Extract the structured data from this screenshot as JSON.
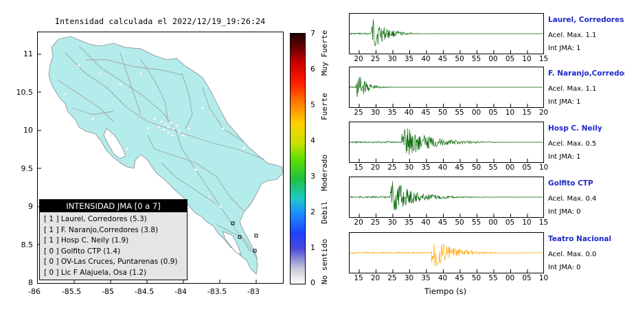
{
  "map": {
    "title": "Intensidad calculada el 2022/12/19_19:26:24",
    "lat_ticks": [
      "11",
      "10.5",
      "10",
      "9.5",
      "9",
      "8.5",
      "8"
    ],
    "lon_ticks": [
      "-86",
      "-85.5",
      "-85",
      "-84.5",
      "-84",
      "-83.5",
      "-83"
    ],
    "land_color": "#b4ecec",
    "colorbar": {
      "ticks": [
        "7",
        "6",
        "5",
        "4",
        "3",
        "2",
        "1",
        "0"
      ],
      "labels": [
        "Muy Fuerte",
        "Fuerte",
        "Moderado",
        "Debil",
        "No sentido"
      ]
    },
    "legend": {
      "header": "INTENSIDAD JMA [0 a 7]",
      "items": [
        "[ 1 ]  Laurel, Corredores (5.3)",
        "[ 1 ]  F. Naranjo,Corredores (3.8)",
        "[ 1 ]  Hosp C. Neily (1.9)",
        "[ 0 ]  Golfito CTP (1.4)",
        "[ 0 ]  OV-Las Cruces, Puntarenas (0.9)",
        "[ 0 ]  Lic F Alajuela, Osa (1.2)"
      ]
    }
  },
  "seismograms": {
    "xlabel": "Tiempo (s)",
    "stations": [
      {
        "name": "Laurel, Corredores",
        "accel": "Acel. Max. 1.1",
        "jma": "Int JMA: 1",
        "color": "#006400",
        "ticks": [
          "20",
          "25",
          "30",
          "35",
          "40",
          "45",
          "50",
          "55",
          "00",
          "05",
          "10",
          "15"
        ]
      },
      {
        "name": "F. Naranjo,Corredores",
        "accel": "Acel. Max. 1.1",
        "jma": "Int JMA: 1",
        "color": "#006400",
        "ticks": [
          "25",
          "30",
          "35",
          "40",
          "45",
          "50",
          "55",
          "00",
          "05",
          "10",
          "15",
          "20"
        ]
      },
      {
        "name": "Hosp C. Neily",
        "accel": "Acel. Max. 0.5",
        "jma": "Int JMA: 1",
        "color": "#006400",
        "ticks": [
          "15",
          "20",
          "25",
          "30",
          "35",
          "40",
          "45",
          "50",
          "55",
          "00",
          "05",
          "10"
        ]
      },
      {
        "name": "Golfito CTP",
        "accel": "Acel. Max. 0.4",
        "jma": "Int JMA: 0",
        "color": "#006400",
        "ticks": [
          "20",
          "25",
          "30",
          "35",
          "40",
          "45",
          "50",
          "55",
          "00",
          "05",
          "10",
          "15"
        ]
      },
      {
        "name": "Teatro Nacional",
        "accel": "Acel. Max. 0.0",
        "jma": "Int JMA: 0",
        "color": "#ffa500",
        "ticks": [
          "15",
          "20",
          "25",
          "30",
          "35",
          "40",
          "45",
          "50",
          "55",
          "00",
          "05",
          "10"
        ]
      }
    ]
  }
}
